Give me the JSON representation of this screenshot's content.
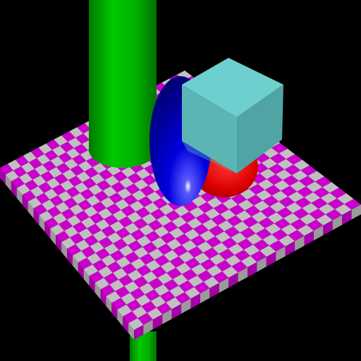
{
  "scene": {
    "background_color": "#000000",
    "checker_colors": [
      "#cc00cc",
      "#c0c0c0"
    ],
    "platform_side_color": "#a800a8",
    "objects": [
      {
        "name": "green-cylinder",
        "color": "#00b400"
      },
      {
        "name": "blue-ellipsoid",
        "color": "#0000cc"
      },
      {
        "name": "red-sphere",
        "color": "#dd0000"
      },
      {
        "name": "cyan-cube",
        "color": "#62c4c4"
      }
    ]
  }
}
